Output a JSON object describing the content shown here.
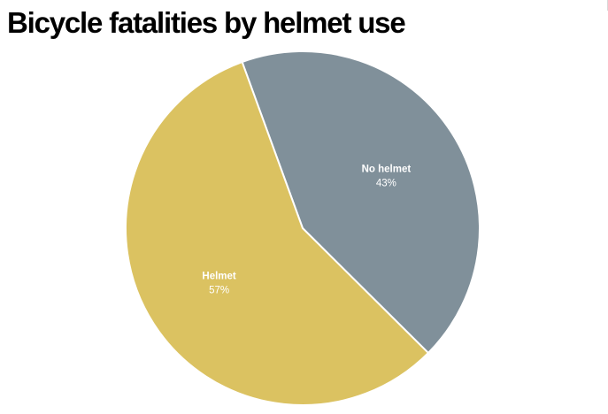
{
  "chart_data": {
    "type": "pie",
    "title": "Bicycle fatalities by helmet use",
    "slices": [
      {
        "label": "No helmet",
        "value": 43,
        "display": "43%",
        "color": "#80909a"
      },
      {
        "label": "Helmet",
        "value": 57,
        "display": "57%",
        "color": "#dbc261"
      }
    ],
    "slice_border_color": "#ffffff",
    "label_color": "#ffffff",
    "legend": "none"
  }
}
